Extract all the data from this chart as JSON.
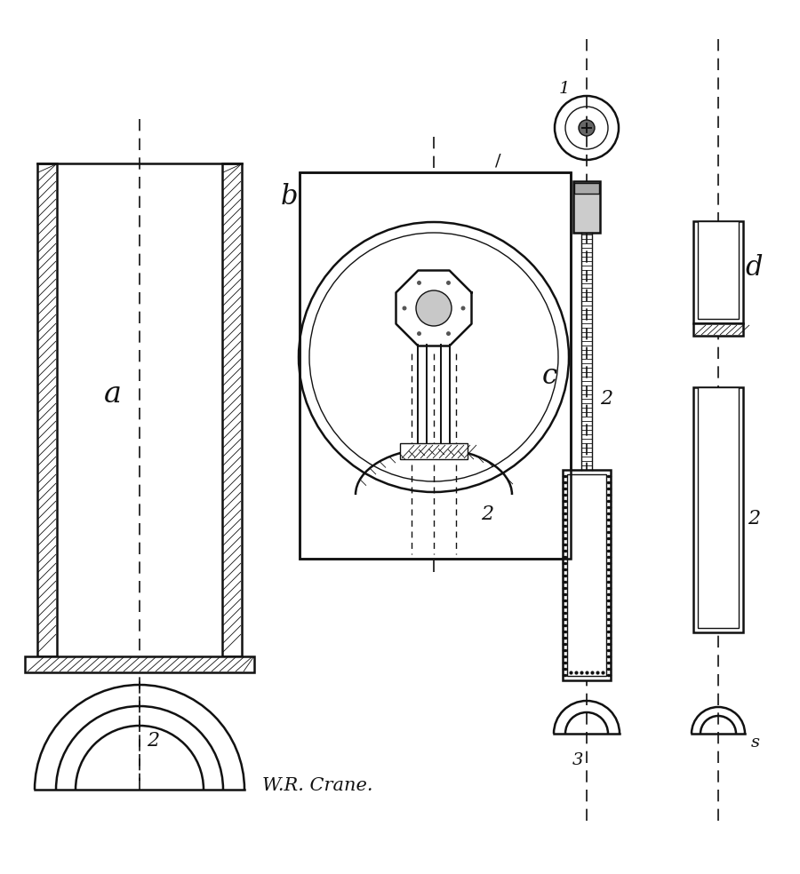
{
  "bg_color": "#ffffff",
  "line_color": "#111111",
  "fig_width": 9.0,
  "fig_height": 9.84,
  "label_a": "a",
  "label_b": "b",
  "label_c": "c",
  "label_d": "d",
  "label_1": "1",
  "label_2": "2",
  "label_3": "3",
  "label_s": "s",
  "signature": "W.R. Crane."
}
